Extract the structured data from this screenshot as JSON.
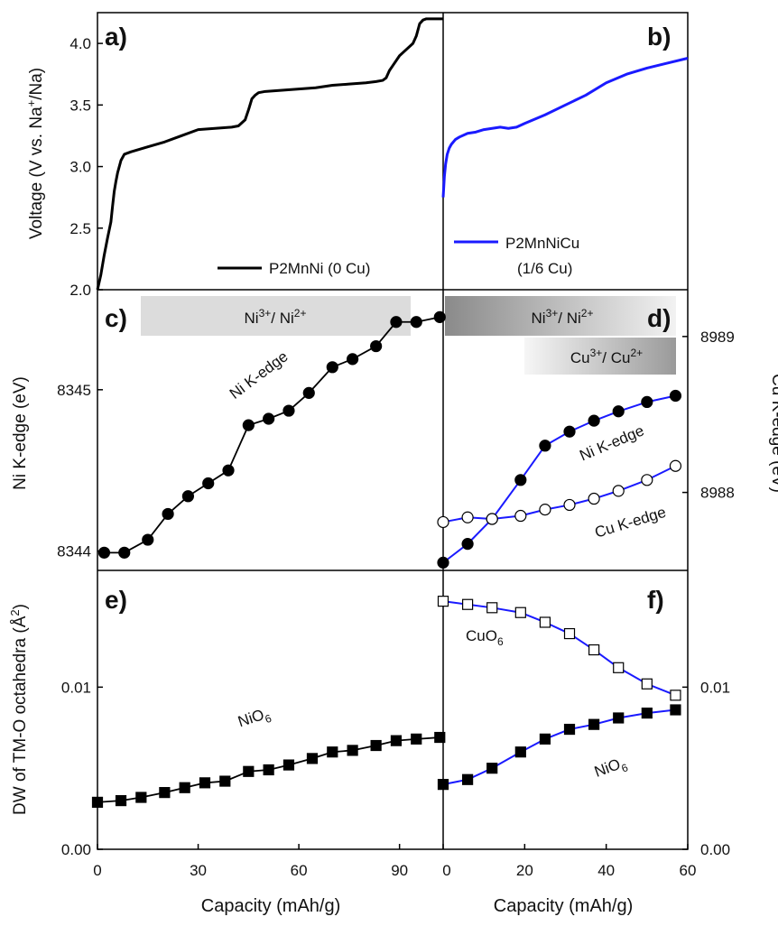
{
  "x_axis_label": "Capacity (mAh/g)",
  "left_x_ticks": [
    "0",
    "30",
    "60",
    "90"
  ],
  "right_x_ticks": [
    "0",
    "20",
    "40",
    "60"
  ],
  "colors": {
    "ni_series": "#000000",
    "cu_series": "#1a1aff",
    "marker_fill": "#ffffff"
  },
  "chart_data": [
    {
      "panel": "a)",
      "type": "line",
      "ylabel": "Voltage (V vs. Na+/Na)",
      "ylabel_parts": [
        "Voltage (V vs. Na",
        "+",
        "/Na)"
      ],
      "yticks": [
        "2.0",
        "2.5",
        "3.0",
        "3.5",
        "4.0"
      ],
      "xlim": [
        0,
        103
      ],
      "ylim": [
        2.0,
        4.25
      ],
      "series": [
        {
          "name": "P2MnNi (0 Cu)",
          "x": [
            0,
            1,
            2,
            3,
            4,
            4.5,
            5,
            5.5,
            6,
            7,
            8,
            10,
            15,
            20,
            25,
            30,
            35,
            40,
            42,
            44,
            45,
            46,
            47,
            48,
            50,
            55,
            60,
            65,
            70,
            75,
            80,
            83,
            85,
            86,
            87,
            88,
            90,
            92,
            94,
            95,
            96,
            97,
            98,
            100,
            102,
            103
          ],
          "y": [
            2.0,
            2.12,
            2.28,
            2.42,
            2.55,
            2.68,
            2.8,
            2.88,
            2.95,
            3.05,
            3.1,
            3.12,
            3.16,
            3.2,
            3.25,
            3.3,
            3.31,
            3.32,
            3.33,
            3.38,
            3.46,
            3.55,
            3.58,
            3.6,
            3.61,
            3.62,
            3.63,
            3.64,
            3.66,
            3.67,
            3.68,
            3.69,
            3.7,
            3.72,
            3.78,
            3.82,
            3.9,
            3.95,
            4.0,
            4.06,
            4.16,
            4.19,
            4.2,
            4.2,
            4.2,
            4.2
          ]
        }
      ]
    },
    {
      "panel": "b)",
      "type": "line",
      "xlim": [
        0,
        60
      ],
      "ylim": [
        2.0,
        4.25
      ],
      "series": [
        {
          "name": "P2MnNiCu (1/6 Cu)",
          "name_lines": [
            "P2MnNiCu",
            "(1/6 Cu)"
          ],
          "x": [
            0,
            0.3,
            0.6,
            1,
            1.5,
            2,
            3,
            4,
            6,
            8,
            10,
            12,
            14,
            16,
            18,
            20,
            25,
            30,
            35,
            40,
            45,
            50,
            55,
            60
          ],
          "y": [
            2.75,
            2.92,
            3.02,
            3.1,
            3.15,
            3.18,
            3.22,
            3.24,
            3.27,
            3.28,
            3.3,
            3.31,
            3.32,
            3.31,
            3.32,
            3.35,
            3.42,
            3.5,
            3.58,
            3.68,
            3.75,
            3.8,
            3.84,
            3.88
          ]
        }
      ]
    },
    {
      "panel": "c)",
      "type": "line",
      "ylabel": "Ni K-edge (eV)",
      "yticks": [
        "8344",
        "8345"
      ],
      "ylim": [
        8343.88,
        8345.62
      ],
      "band": {
        "label_parts": [
          "Ni",
          "3+",
          "/ Ni",
          "2+"
        ]
      },
      "series": [
        {
          "name": "Ni K-edge",
          "x": [
            2,
            8,
            15,
            21,
            27,
            33,
            39,
            45,
            51,
            57,
            63,
            70,
            76,
            83,
            89,
            95,
            102
          ],
          "y": [
            8343.99,
            8343.99,
            8344.07,
            8344.23,
            8344.34,
            8344.42,
            8344.5,
            8344.78,
            8344.82,
            8344.87,
            8344.98,
            8345.14,
            8345.19,
            8345.27,
            8345.42,
            8345.42,
            8345.45
          ]
        }
      ]
    },
    {
      "panel": "d)",
      "type": "line",
      "ylabel": "Cu K-edge (eV)",
      "yticks": [
        "8988",
        "8989"
      ],
      "ylim": [
        8987.5,
        8989.3
      ],
      "bands": [
        {
          "label_parts": [
            "Ni",
            "3+",
            "/ Ni",
            "2+"
          ]
        },
        {
          "label_parts": [
            "Cu",
            "3+",
            "/ Cu",
            "2+"
          ]
        }
      ],
      "series": [
        {
          "name": "Ni K-edge",
          "x": [
            0,
            6,
            12,
            19,
            25,
            31,
            37,
            43,
            50,
            57
          ],
          "y": [
            8987.55,
            8987.67,
            8987.83,
            8988.08,
            8988.3,
            8988.39,
            8988.46,
            8988.52,
            8988.58,
            8988.62
          ]
        },
        {
          "name": "Cu K-edge",
          "x": [
            0,
            6,
            12,
            19,
            25,
            31,
            37,
            43,
            50,
            57
          ],
          "y": [
            8987.81,
            8987.84,
            8987.83,
            8987.85,
            8987.89,
            8987.92,
            8987.96,
            8988.01,
            8988.08,
            8988.17
          ]
        }
      ]
    },
    {
      "panel": "e)",
      "type": "line",
      "ylabel": "DW of TM-O octahedra (Å2)",
      "ylabel_parts": [
        "DW of TM-O octahedra (Å",
        "2",
        ")"
      ],
      "yticks": [
        "0.00",
        "0.01"
      ],
      "ylim": [
        0.0,
        0.0172
      ],
      "series": [
        {
          "name": "NiO6",
          "name_parts": [
            "NiO",
            "6"
          ],
          "x": [
            0,
            7,
            13,
            20,
            26,
            32,
            38,
            45,
            51,
            57,
            64,
            70,
            76,
            83,
            89,
            95,
            102
          ],
          "y": [
            0.0029,
            0.003,
            0.0032,
            0.0035,
            0.0038,
            0.0041,
            0.0042,
            0.0048,
            0.0049,
            0.0052,
            0.0056,
            0.006,
            0.0061,
            0.0064,
            0.0067,
            0.0068,
            0.0069
          ]
        }
      ]
    },
    {
      "panel": "f)",
      "type": "line",
      "yticks": [
        "0.00",
        "0.01"
      ],
      "ylim": [
        0.0,
        0.0172
      ],
      "series": [
        {
          "name": "CuO6",
          "name_parts": [
            "CuO",
            "6"
          ],
          "x": [
            0,
            6,
            12,
            19,
            25,
            31,
            37,
            43,
            50,
            57
          ],
          "y": [
            0.0153,
            0.0151,
            0.0149,
            0.0146,
            0.014,
            0.0133,
            0.0123,
            0.0112,
            0.0102,
            0.0095
          ]
        },
        {
          "name": "NiO6",
          "name_parts": [
            "NiO",
            "6"
          ],
          "x": [
            0,
            6,
            12,
            19,
            25,
            31,
            37,
            43,
            50,
            57
          ],
          "y": [
            0.004,
            0.0043,
            0.005,
            0.006,
            0.0068,
            0.0074,
            0.0077,
            0.0081,
            0.0084,
            0.0086
          ]
        }
      ]
    }
  ]
}
